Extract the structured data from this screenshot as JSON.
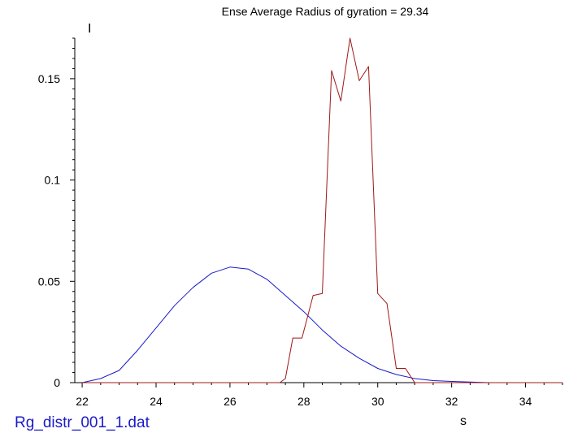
{
  "chart_data": {
    "type": "line",
    "title": "Ense Average Radius of gyration = 29.34",
    "xlabel": "s",
    "ylabel": "I",
    "file_label": "Rg_distr_001_1.dat",
    "xlim": [
      21.8,
      35
    ],
    "ylim": [
      0,
      0.17
    ],
    "x_ticks": [
      22,
      24,
      26,
      28,
      30,
      32,
      34
    ],
    "y_ticks": [
      0,
      0.05,
      0.1,
      0.15
    ],
    "y_tick_labels": [
      "0",
      "0.05",
      "0.1",
      "0.15"
    ],
    "series": [
      {
        "color": "#1a1ac8",
        "x": [
          22,
          22.5,
          23,
          23.5,
          24,
          24.5,
          25,
          25.5,
          26,
          26.5,
          27,
          27.5,
          28,
          28.5,
          29,
          29.5,
          30,
          30.5,
          31,
          31.5,
          32,
          32.5,
          33
        ],
        "y": [
          0,
          0.002,
          0.006,
          0.016,
          0.027,
          0.038,
          0.047,
          0.054,
          0.057,
          0.056,
          0.051,
          0.043,
          0.035,
          0.026,
          0.018,
          0.012,
          0.007,
          0.004,
          0.002,
          0.001,
          0.0006,
          0.0003,
          0
        ]
      },
      {
        "color": "#a01818",
        "x": [
          22,
          23,
          24,
          25,
          26,
          27,
          27.35,
          27.5,
          27.7,
          27.95,
          28.25,
          28.5,
          28.75,
          29.0,
          29.25,
          29.5,
          29.75,
          30.0,
          30.25,
          30.5,
          30.75,
          31.0,
          31.5,
          32,
          33,
          34,
          35
        ],
        "y": [
          0,
          0,
          0,
          0,
          0,
          0,
          0,
          0.002,
          0.022,
          0.022,
          0.043,
          0.044,
          0.154,
          0.139,
          0.17,
          0.149,
          0.156,
          0.044,
          0.039,
          0.007,
          0.007,
          0,
          0,
          0,
          0,
          0,
          0
        ]
      }
    ]
  }
}
